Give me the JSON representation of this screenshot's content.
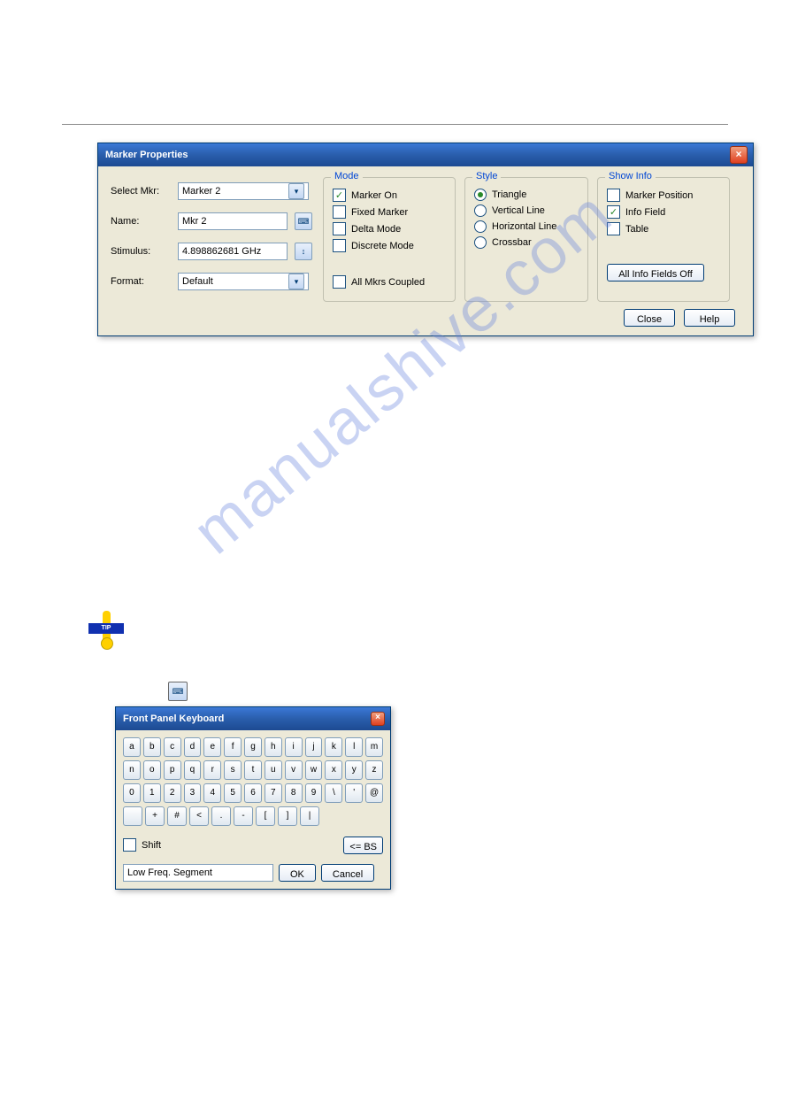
{
  "watermark_text": "manualshive.com",
  "dialog1": {
    "title": "Marker Properties",
    "labels": {
      "select_mkr": "Select Mkr:",
      "name": "Name:",
      "stimulus": "Stimulus:",
      "format": "Format:"
    },
    "values": {
      "select_mkr": "Marker 2",
      "name": "Mkr 2",
      "stimulus": "4.898862681 GHz",
      "format": "Default"
    },
    "mode": {
      "title": "Mode",
      "items": [
        {
          "label": "Marker On",
          "checked": true
        },
        {
          "label": "Fixed Marker",
          "checked": false
        },
        {
          "label": "Delta Mode",
          "checked": false
        },
        {
          "label": "Discrete Mode",
          "checked": false
        }
      ],
      "coupled": {
        "label": "All Mkrs Coupled",
        "checked": false
      }
    },
    "style": {
      "title": "Style",
      "items": [
        {
          "label": "Triangle",
          "selected": true
        },
        {
          "label": "Vertical Line",
          "selected": false
        },
        {
          "label": "Horizontal Line",
          "selected": false
        },
        {
          "label": "Crossbar",
          "selected": false
        }
      ]
    },
    "showinfo": {
      "title": "Show Info",
      "items": [
        {
          "label": "Marker Position",
          "checked": false
        },
        {
          "label": "Info Field",
          "checked": true
        },
        {
          "label": "Table",
          "checked": false
        }
      ],
      "button": "All Info Fields Off"
    },
    "buttons": {
      "close": "Close",
      "help": "Help"
    }
  },
  "tip_label": "TIP",
  "dialog2": {
    "title": "Front Panel Keyboard",
    "rows": [
      [
        "a",
        "b",
        "c",
        "d",
        "e",
        "f",
        "g",
        "h",
        "i",
        "j",
        "k",
        "l",
        "m"
      ],
      [
        "n",
        "o",
        "p",
        "q",
        "r",
        "s",
        "t",
        "u",
        "v",
        "w",
        "x",
        "y",
        "z"
      ],
      [
        "0",
        "1",
        "2",
        "3",
        "4",
        "5",
        "6",
        "7",
        "8",
        "9",
        "\\",
        "'",
        "@"
      ],
      [
        "",
        "+",
        "#",
        "<",
        ".",
        "-",
        "[",
        "]",
        "|"
      ]
    ],
    "shift": {
      "label": "Shift",
      "checked": false
    },
    "bs": "<= BS",
    "input": "Low Freq. Segment",
    "ok": "OK",
    "cancel": "Cancel"
  }
}
